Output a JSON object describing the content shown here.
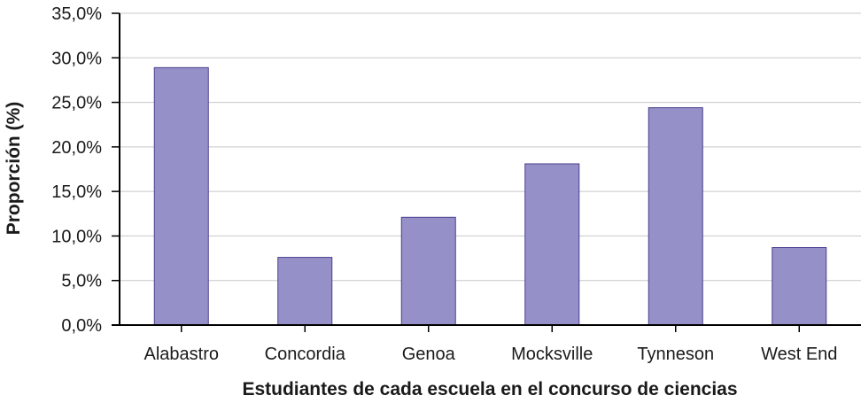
{
  "chart_data": {
    "type": "bar",
    "title": "",
    "xlabel": "Estudiantes de cada escuela en el concurso de ciencias",
    "ylabel": "Proporción (%)",
    "categories": [
      "Alabastro",
      "Concordia",
      "Genoa",
      "Mocksville",
      "Tynneson",
      "West End"
    ],
    "values": [
      28.9,
      7.6,
      12.1,
      18.1,
      24.4,
      8.7
    ],
    "ylim": [
      0,
      35
    ],
    "yticks": [
      0,
      5,
      10,
      15,
      20,
      25,
      30,
      35
    ],
    "ytick_labels": [
      "0,0%",
      "5,0%",
      "10,0%",
      "15,0%",
      "20,0%",
      "25,0%",
      "30,0%",
      "35,0%"
    ],
    "grid": true,
    "legend": "none",
    "colors": {
      "bar_fill": "#9590c7",
      "bar_stroke": "#4a3f8f",
      "grid": "#c8c8c8",
      "axis": "#000000"
    }
  }
}
